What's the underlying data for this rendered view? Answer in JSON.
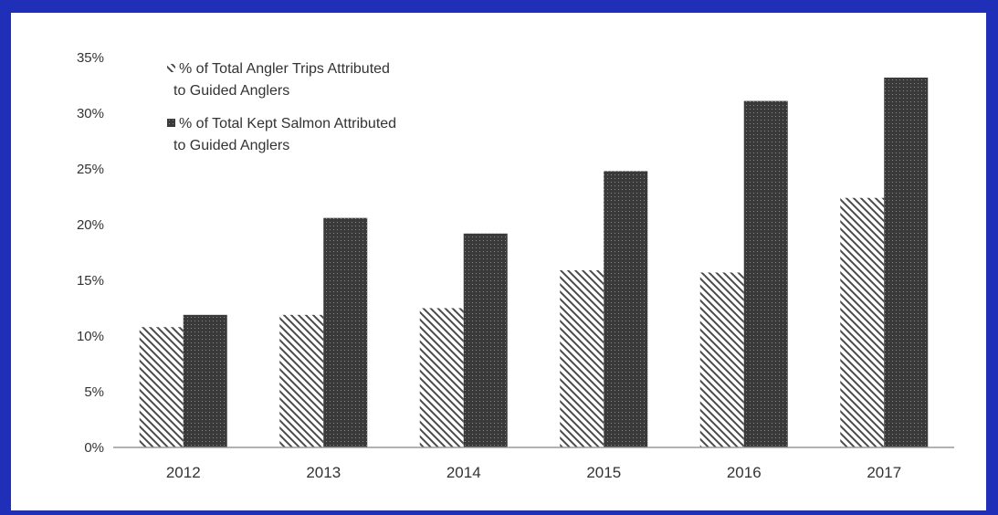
{
  "chart_data": {
    "type": "bar",
    "title": "",
    "xlabel": "",
    "ylabel": "",
    "categories": [
      "2012",
      "2013",
      "2014",
      "2015",
      "2016",
      "2017"
    ],
    "series": [
      {
        "name": "% of Total Angler Trips Attributed to Guided Anglers",
        "legend_lines": [
          "% of Total Angler Trips Attributed",
          "to Guided Anglers"
        ],
        "pattern": "diagonal-hatch",
        "values": [
          10.8,
          11.9,
          12.5,
          15.9,
          15.7,
          22.4
        ]
      },
      {
        "name": "% of Total Kept Salmon Attributed to Guided Anglers",
        "legend_lines": [
          "% of Total Kept Salmon Attributed",
          "to Guided Anglers"
        ],
        "pattern": "dark-dotted",
        "values": [
          11.9,
          20.6,
          19.2,
          24.8,
          31.1,
          33.2
        ]
      }
    ],
    "ylim": [
      0,
      35
    ],
    "yticks": [
      0,
      5,
      10,
      15,
      20,
      25,
      30,
      35
    ],
    "ytick_labels": [
      "0%",
      "5%",
      "10%",
      "15%",
      "20%",
      "25%",
      "30%",
      "35%"
    ],
    "grid": false,
    "legend_position": "top-left",
    "colors": {
      "frame": "#1f2fb8",
      "background": "#ffffff",
      "bar_dark": "#3a3a3a",
      "hatch": "#4a4a4a",
      "axis": "#999999",
      "text": "#333333"
    }
  }
}
